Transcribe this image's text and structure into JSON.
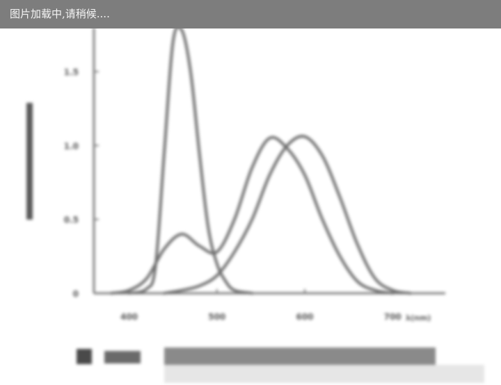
{
  "loading_banner": {
    "text": "图片加载中,请稍候...."
  },
  "chart_data": {
    "type": "line",
    "xlabel": "λ(nm)",
    "x_ticks": [
      400,
      500,
      600,
      700
    ],
    "x_tick_labels": [
      "400",
      "500",
      "600",
      "700"
    ],
    "y_ticks": [
      0,
      0.5,
      1.0,
      1.5
    ],
    "y_tick_labels": [
      "0",
      "0.5",
      "1.0",
      "1.5"
    ],
    "xlim": [
      360,
      760
    ],
    "ylim": [
      0,
      1.9
    ],
    "ylabel": "",
    "grid": false,
    "series": [
      {
        "color": "#6e6e6e",
        "x": [
          400,
          420,
          430,
          440,
          450,
          460,
          470,
          480,
          490,
          500,
          510,
          520,
          540
        ],
        "values": [
          0.0,
          0.03,
          0.18,
          0.95,
          1.7,
          1.78,
          1.5,
          0.95,
          0.45,
          0.2,
          0.08,
          0.02,
          0.0
        ]
      },
      {
        "color": "#6e6e6e",
        "x": [
          380,
          400,
          420,
          440,
          460,
          480,
          500,
          520,
          540,
          560,
          580,
          600,
          620,
          640,
          660,
          680,
          700
        ],
        "values": [
          0.0,
          0.02,
          0.1,
          0.3,
          0.4,
          0.32,
          0.28,
          0.5,
          0.85,
          1.05,
          0.98,
          0.8,
          0.5,
          0.25,
          0.08,
          0.02,
          0.0
        ]
      },
      {
        "color": "#6e6e6e",
        "x": [
          440,
          460,
          480,
          500,
          520,
          540,
          560,
          580,
          600,
          620,
          640,
          660,
          680,
          700,
          720
        ],
        "values": [
          0.0,
          0.02,
          0.05,
          0.12,
          0.28,
          0.5,
          0.8,
          1.0,
          1.06,
          0.93,
          0.65,
          0.33,
          0.1,
          0.02,
          0.0
        ]
      }
    ]
  }
}
